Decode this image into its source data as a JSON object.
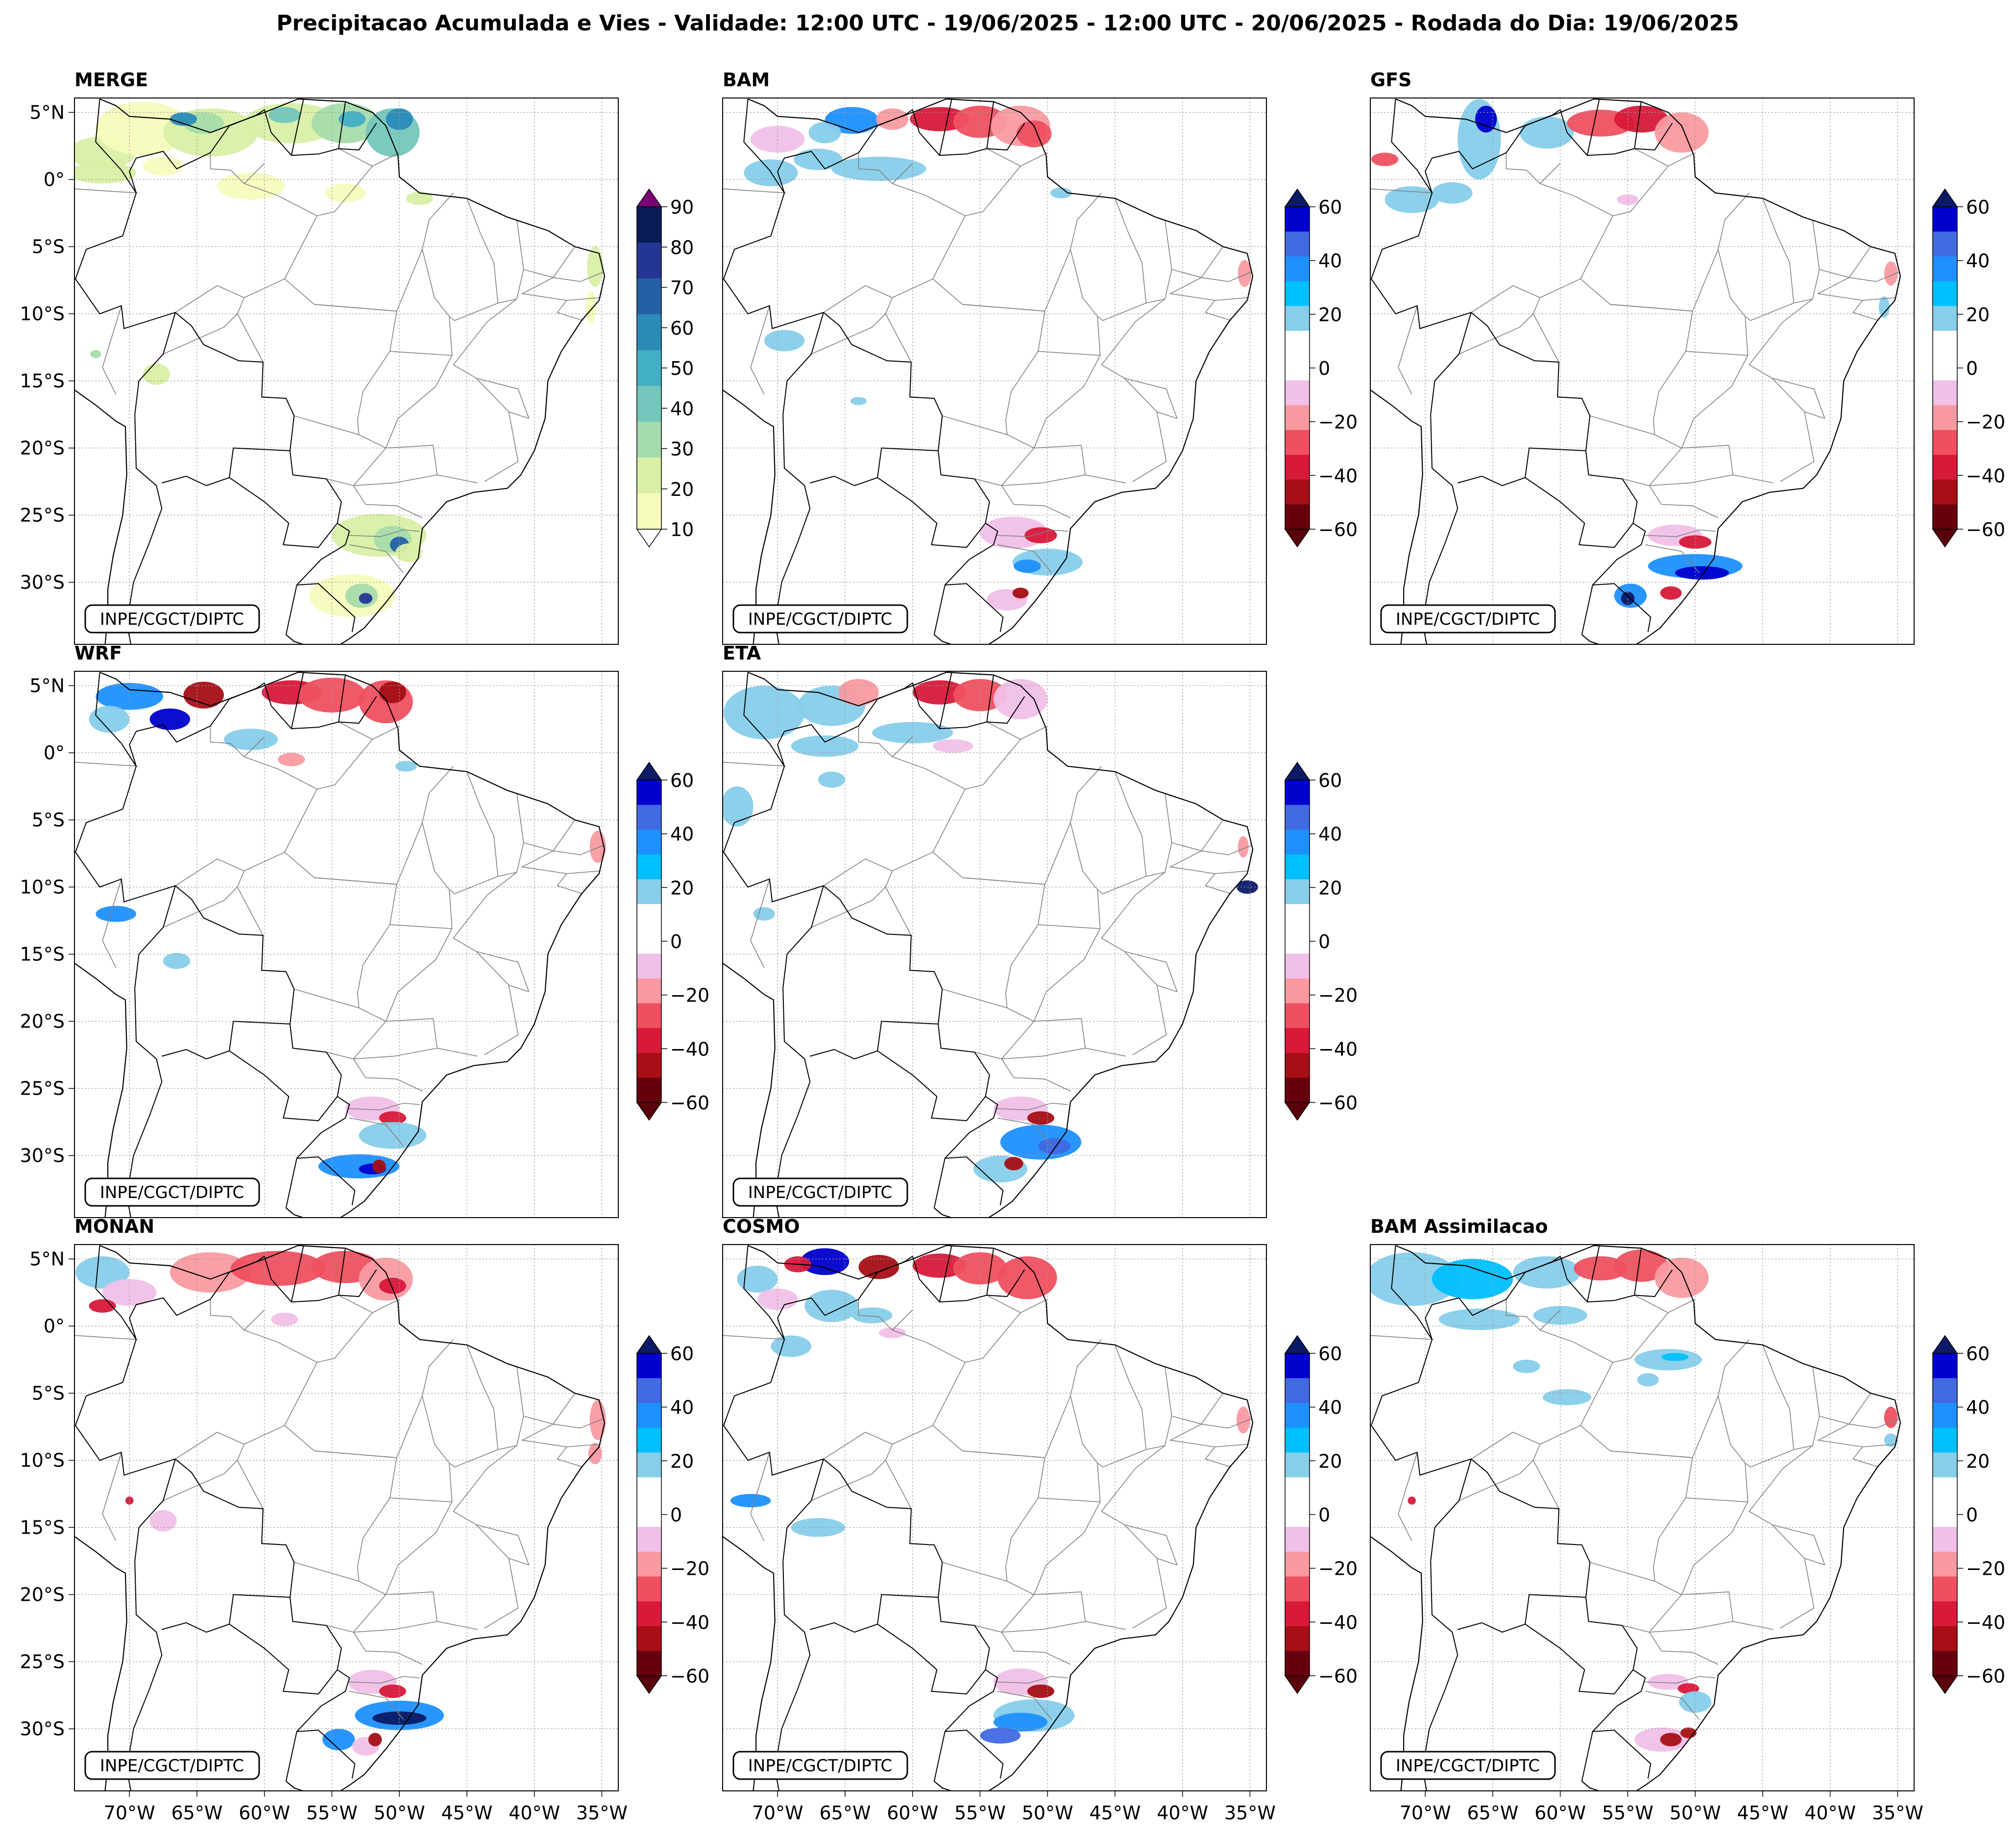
{
  "title": "Precipitacao Acumulada e Vies - Validade: 12:00 UTC - 19/06/2025 - 12:00 UTC - 20/06/2025 - Rodada do Dia: 19/06/2025",
  "credit": "INPE/CGCT/DIPTC",
  "lat_labels": [
    "5°N",
    "0°",
    "5°S",
    "10°S",
    "15°S",
    "20°S",
    "25°S",
    "30°S"
  ],
  "lon_labels": [
    "70°W",
    "65°W",
    "60°W",
    "55°W",
    "50°W",
    "45°W",
    "40°W",
    "35°W"
  ],
  "merge_colorbar": {
    "ticks": [
      "10",
      "20",
      "30",
      "40",
      "50",
      "60",
      "70",
      "80",
      "90"
    ],
    "colors": [
      "#f6fbbd",
      "#d9efa6",
      "#a6dcab",
      "#74c6bc",
      "#43afc5",
      "#2b8ab8",
      "#2460a6",
      "#253594",
      "#081d58"
    ],
    "over_color": "#7a0177",
    "under_color": "#ffffff"
  },
  "bias_colorbar": {
    "ticks": [
      "60",
      "40",
      "20",
      "0",
      "−20",
      "−40",
      "−60"
    ],
    "colors": [
      "#67000d",
      "#a50f15",
      "#d7193a",
      "#ef5060",
      "#f99aa1",
      "#f1c0e8",
      "#ffffff",
      "#ffffff",
      "#87ceeb",
      "#00bfff",
      "#1e90ff",
      "#4169e1",
      "#0000cd"
    ],
    "over_color": "#0b1a66",
    "under_color": "#5a000a"
  },
  "panels": [
    {
      "title": "MERGE",
      "kind": "merge"
    },
    {
      "title": "BAM",
      "kind": "bias"
    },
    {
      "title": "GFS",
      "kind": "bias"
    },
    {
      "title": "WRF",
      "kind": "bias"
    },
    {
      "title": "ETA",
      "kind": "bias"
    },
    {
      "title": "MONAN",
      "kind": "bias"
    },
    {
      "title": "COSMO",
      "kind": "bias"
    },
    {
      "title": "BAM Assimilacao",
      "kind": "bias"
    }
  ]
}
